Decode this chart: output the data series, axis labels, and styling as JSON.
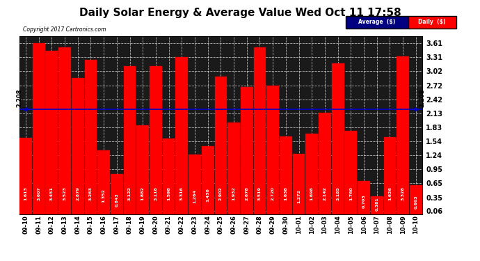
{
  "title": "Daily Solar Energy & Average Value Wed Oct 11 17:58",
  "copyright": "Copyright 2017 Cartronics.com",
  "categories": [
    "09-10",
    "09-11",
    "09-12",
    "09-13",
    "09-14",
    "09-15",
    "09-16",
    "09-17",
    "09-18",
    "09-19",
    "09-20",
    "09-21",
    "09-22",
    "09-23",
    "09-24",
    "09-25",
    "09-26",
    "09-27",
    "09-28",
    "09-29",
    "09-30",
    "10-01",
    "10-02",
    "10-03",
    "10-04",
    "10-05",
    "10-06",
    "10-07",
    "10-08",
    "10-09",
    "10-10"
  ],
  "values": [
    1.613,
    3.607,
    3.451,
    3.523,
    2.879,
    3.263,
    1.352,
    0.843,
    3.122,
    1.882,
    3.118,
    1.598,
    3.316,
    1.264,
    1.43,
    2.902,
    1.932,
    2.678,
    3.519,
    2.72,
    1.638,
    1.272,
    1.698,
    2.142,
    3.185,
    1.76,
    0.703,
    0.381,
    1.626,
    3.328,
    0.603
  ],
  "average": 2.208,
  "bar_color": "#FF0000",
  "average_line_color": "#0000CD",
  "yticks": [
    0.06,
    0.35,
    0.65,
    0.95,
    1.24,
    1.54,
    1.83,
    2.13,
    2.42,
    2.72,
    3.02,
    3.31,
    3.61
  ],
  "ymin": 0.0,
  "ymax": 3.75,
  "background_color": "#FFFFFF",
  "plot_bg_color": "#1A1A1A",
  "grid_color": "#FFFFFF",
  "title_fontsize": 11,
  "bar_edge_color": "#CC0000",
  "legend_avg_bg": "#000080",
  "legend_daily_bg": "#FF0000"
}
